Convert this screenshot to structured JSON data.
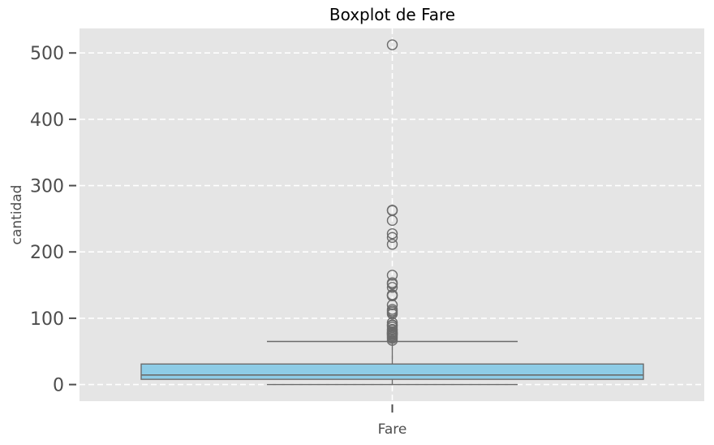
{
  "chart_data": {
    "type": "box",
    "title": "Boxplot de Fare",
    "xlabel": "",
    "ylabel": "cantidad",
    "categories": [
      "Fare"
    ],
    "ylim": [
      -25,
      537
    ],
    "yticks": [
      0,
      100,
      200,
      300,
      400,
      500
    ],
    "grid": true,
    "legend": "none",
    "box": {
      "category": "Fare",
      "whisker_low": 0,
      "q1": 7.9,
      "median": 14.45,
      "q3": 31,
      "whisker_high": 65,
      "outliers": [
        512.33,
        263,
        262.4,
        247.5,
        227.5,
        221.8,
        211.5,
        164.9,
        153.5,
        151.6,
        146.5,
        135.6,
        134.5,
        133.7,
        120,
        113.3,
        110.9,
        108.9,
        106.4,
        93.5,
        90,
        89.1,
        86.5,
        83.2,
        82.2,
        79.7,
        78.3,
        77.3,
        76.3,
        75.2,
        73.5,
        71.3,
        69.5,
        66.6
      ]
    },
    "colors": {
      "box_fill": "#8ecce6",
      "line": "#6b6b6b",
      "plot_bg": "#e5e5e5",
      "grid": "#ffffff",
      "text": "#4d4d4d"
    }
  }
}
